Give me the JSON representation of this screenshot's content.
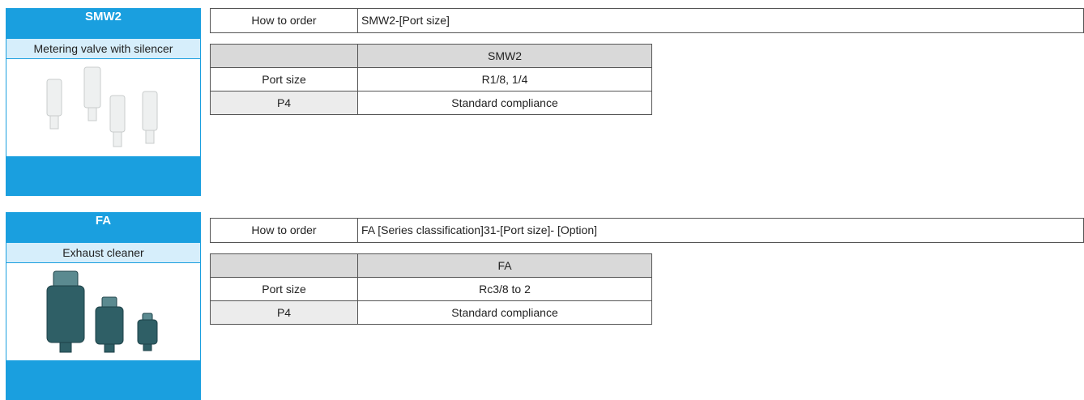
{
  "products": [
    {
      "code": "SMW2",
      "description": "Metering valve with silencer",
      "order_label": "How to order",
      "order_value": "SMW2-[Port size]",
      "table": {
        "header": [
          "",
          "SMW2"
        ],
        "rows": [
          [
            "Port size",
            "R1/8, 1/4"
          ],
          [
            "P4",
            "Standard compliance"
          ]
        ]
      }
    },
    {
      "code": "FA",
      "description": "Exhaust cleaner",
      "order_label": "How to order",
      "order_value": "FA [Series classification]31-[Port size]- [Option]",
      "table": {
        "header": [
          "",
          "FA"
        ],
        "rows": [
          [
            "Port size",
            "Rc3/8 to 2"
          ],
          [
            "P4",
            "Standard compliance"
          ]
        ]
      }
    }
  ]
}
